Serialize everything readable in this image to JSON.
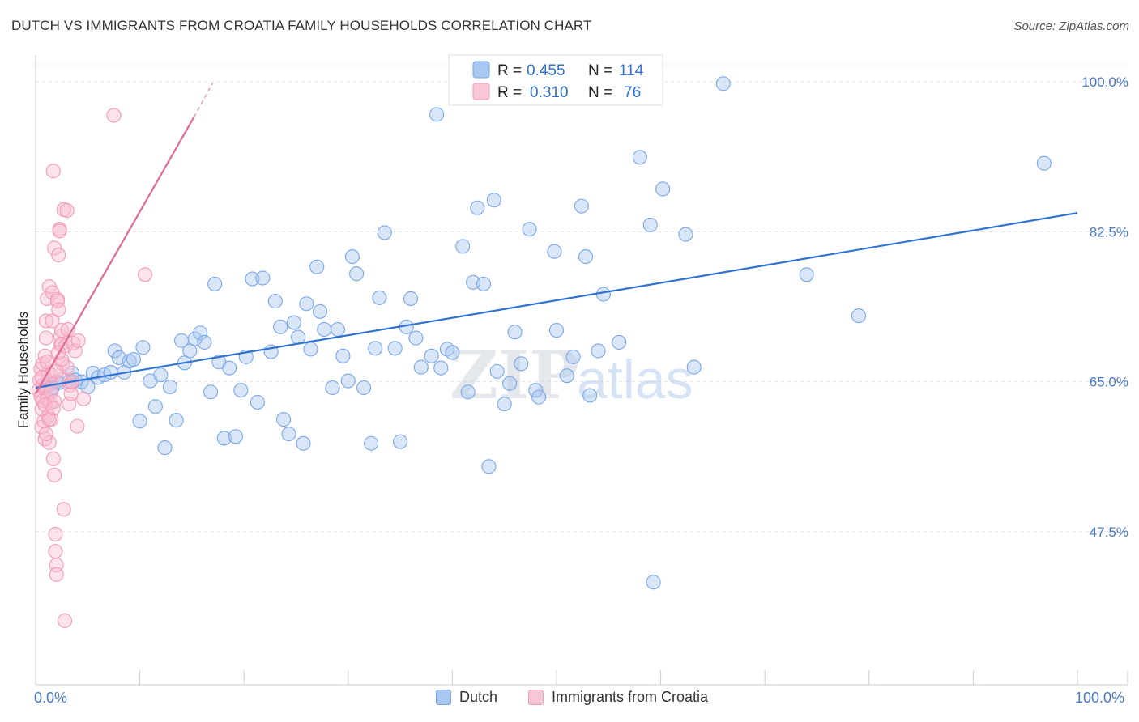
{
  "header": {
    "title": "DUTCH VS IMMIGRANTS FROM CROATIA FAMILY HOUSEHOLDS CORRELATION CHART",
    "source": "Source: ZipAtlas.com"
  },
  "watermark": {
    "part1": "ZIP",
    "part2": "atlas"
  },
  "chart_data": {
    "type": "scatter",
    "title": "DUTCH VS IMMIGRANTS FROM CROATIA FAMILY HOUSEHOLDS CORRELATION CHART",
    "xlabel": "",
    "ylabel": "Family Households",
    "xlim": [
      0,
      100
    ],
    "ylim": [
      30,
      102
    ],
    "x_tick_labels": [
      "0.0%",
      "100.0%"
    ],
    "y_ticks": [
      47.5,
      65.0,
      82.5,
      100.0
    ],
    "y_tick_labels": [
      "47.5%",
      "65.0%",
      "82.5%",
      "100.0%"
    ],
    "grid": true,
    "legend": {
      "placement": "top-center",
      "rows": [
        {
          "r_label": "R = ",
          "r_value": "0.455",
          "n_label": "N = ",
          "n_value": "114"
        },
        {
          "r_label": "R = ",
          "r_value": "0.310",
          "n_label": "N = ",
          "n_value": "76"
        }
      ]
    },
    "series": [
      {
        "name": "Dutch",
        "color": "#7aa6e8",
        "line_color": "#2f72d0",
        "trend": {
          "x": [
            0,
            100
          ],
          "y": [
            64.3,
            84.7
          ]
        },
        "points": [
          [
            0.9,
            64.4
          ],
          [
            1.0,
            64.6
          ],
          [
            1.1,
            64.5
          ],
          [
            1.2,
            64.7
          ],
          [
            1.5,
            64.1
          ],
          [
            1.6,
            64.3
          ],
          [
            2.0,
            65.0
          ],
          [
            2.2,
            64.9
          ],
          [
            3.2,
            65.0
          ],
          [
            3.5,
            66.0
          ],
          [
            3.8,
            65.2
          ],
          [
            4.4,
            65.0
          ],
          [
            5.0,
            64.4
          ],
          [
            5.5,
            66.0
          ],
          [
            6.0,
            65.5
          ],
          [
            6.6,
            65.8
          ],
          [
            7.2,
            66.1
          ],
          [
            7.6,
            68.6
          ],
          [
            8.0,
            67.8
          ],
          [
            8.5,
            66.1
          ],
          [
            9.0,
            67.4
          ],
          [
            9.4,
            67.6
          ],
          [
            10.0,
            60.4
          ],
          [
            10.3,
            69.0
          ],
          [
            11.0,
            65.1
          ],
          [
            11.5,
            62.1
          ],
          [
            12.0,
            65.8
          ],
          [
            12.4,
            57.3
          ],
          [
            12.9,
            64.4
          ],
          [
            13.5,
            60.5
          ],
          [
            14.0,
            69.8
          ],
          [
            14.3,
            67.2
          ],
          [
            14.8,
            68.6
          ],
          [
            15.3,
            70.0
          ],
          [
            15.8,
            70.7
          ],
          [
            16.2,
            69.6
          ],
          [
            16.8,
            63.8
          ],
          [
            17.2,
            76.4
          ],
          [
            17.6,
            67.3
          ],
          [
            18.1,
            58.4
          ],
          [
            18.6,
            66.6
          ],
          [
            19.2,
            58.6
          ],
          [
            19.7,
            64.0
          ],
          [
            20.2,
            67.9
          ],
          [
            20.8,
            77.0
          ],
          [
            21.3,
            62.6
          ],
          [
            21.8,
            77.1
          ],
          [
            22.6,
            68.5
          ],
          [
            23.0,
            74.4
          ],
          [
            23.5,
            71.4
          ],
          [
            23.8,
            60.6
          ],
          [
            24.3,
            58.9
          ],
          [
            24.8,
            71.9
          ],
          [
            25.2,
            70.2
          ],
          [
            25.7,
            57.8
          ],
          [
            26.0,
            74.1
          ],
          [
            26.4,
            68.8
          ],
          [
            27.0,
            78.4
          ],
          [
            27.3,
            73.2
          ],
          [
            27.7,
            71.1
          ],
          [
            28.5,
            64.3
          ],
          [
            29.0,
            71.1
          ],
          [
            29.5,
            68.0
          ],
          [
            30.0,
            65.1
          ],
          [
            30.4,
            79.6
          ],
          [
            30.8,
            77.6
          ],
          [
            31.5,
            64.3
          ],
          [
            32.2,
            57.8
          ],
          [
            32.6,
            68.9
          ],
          [
            33.0,
            74.8
          ],
          [
            33.5,
            82.4
          ],
          [
            34.5,
            68.9
          ],
          [
            35.0,
            58.0
          ],
          [
            35.6,
            71.4
          ],
          [
            36.0,
            74.7
          ],
          [
            36.5,
            70.1
          ],
          [
            37.0,
            66.7
          ],
          [
            38.0,
            68.0
          ],
          [
            38.5,
            96.2
          ],
          [
            38.9,
            66.6
          ],
          [
            39.5,
            68.8
          ],
          [
            40.0,
            68.4
          ],
          [
            41.0,
            80.8
          ],
          [
            41.5,
            63.8
          ],
          [
            42.0,
            76.6
          ],
          [
            42.4,
            85.3
          ],
          [
            43.0,
            76.4
          ],
          [
            43.5,
            55.1
          ],
          [
            44.0,
            86.2
          ],
          [
            44.3,
            66.2
          ],
          [
            45.0,
            62.4
          ],
          [
            45.5,
            64.8
          ],
          [
            46.0,
            70.8
          ],
          [
            46.6,
            67.1
          ],
          [
            47.4,
            82.8
          ],
          [
            48.0,
            64.0
          ],
          [
            48.3,
            63.2
          ],
          [
            49.8,
            80.2
          ],
          [
            50.0,
            71.0
          ],
          [
            51.0,
            65.7
          ],
          [
            51.6,
            67.9
          ],
          [
            52.4,
            85.5
          ],
          [
            52.8,
            79.6
          ],
          [
            53.2,
            63.4
          ],
          [
            54.0,
            68.6
          ],
          [
            54.5,
            75.2
          ],
          [
            56.0,
            69.6
          ],
          [
            58.0,
            91.2
          ],
          [
            59.0,
            83.3
          ],
          [
            59.3,
            41.6
          ],
          [
            60.2,
            87.5
          ],
          [
            62.4,
            82.2
          ],
          [
            63.2,
            66.7
          ],
          [
            66.0,
            99.8
          ],
          [
            74.0,
            77.5
          ],
          [
            79.0,
            72.7
          ],
          [
            96.8,
            90.5
          ]
        ]
      },
      {
        "name": "Immigrants from Croatia",
        "color": "#f49ab6",
        "line_color": "#e06a96",
        "trend": {
          "x": [
            0,
            15.2
          ],
          "y": [
            63.6,
            95.9
          ]
        },
        "trend_dashed": {
          "x": [
            15.2,
            17.0
          ],
          "y": [
            95.9,
            99.9
          ]
        },
        "points": [
          [
            0.3,
            64.0
          ],
          [
            0.4,
            65.2
          ],
          [
            0.5,
            63.3
          ],
          [
            0.5,
            66.5
          ],
          [
            0.6,
            61.8
          ],
          [
            0.6,
            59.7
          ],
          [
            0.7,
            62.8
          ],
          [
            0.7,
            67.1
          ],
          [
            0.8,
            60.4
          ],
          [
            0.8,
            64.3
          ],
          [
            0.9,
            58.3
          ],
          [
            0.9,
            68.0
          ],
          [
            1.0,
            70.1
          ],
          [
            1.0,
            72.1
          ],
          [
            1.1,
            63.0
          ],
          [
            1.1,
            74.7
          ],
          [
            1.2,
            61.0
          ],
          [
            1.2,
            66.0
          ],
          [
            1.3,
            76.1
          ],
          [
            1.3,
            57.9
          ],
          [
            1.4,
            64.7
          ],
          [
            1.4,
            62.5
          ],
          [
            1.5,
            65.8
          ],
          [
            1.5,
            60.6
          ],
          [
            1.6,
            72.1
          ],
          [
            1.6,
            75.4
          ],
          [
            1.7,
            89.6
          ],
          [
            1.7,
            56.0
          ],
          [
            1.8,
            54.1
          ],
          [
            1.8,
            80.6
          ],
          [
            1.9,
            47.2
          ],
          [
            1.9,
            45.2
          ],
          [
            2.0,
            43.6
          ],
          [
            2.0,
            42.5
          ],
          [
            2.1,
            74.6
          ],
          [
            2.1,
            74.4
          ],
          [
            2.2,
            73.4
          ],
          [
            2.2,
            79.8
          ],
          [
            2.3,
            82.8
          ],
          [
            2.3,
            82.6
          ],
          [
            2.4,
            70.3
          ],
          [
            2.4,
            69.3
          ],
          [
            2.5,
            71.0
          ],
          [
            2.5,
            69.4
          ],
          [
            2.6,
            65.3
          ],
          [
            2.6,
            67.1
          ],
          [
            2.7,
            85.1
          ],
          [
            2.7,
            50.1
          ],
          [
            2.8,
            37.1
          ],
          [
            2.9,
            69.2
          ],
          [
            3.0,
            66.7
          ],
          [
            3.0,
            85.0
          ],
          [
            3.1,
            71.1
          ],
          [
            3.2,
            62.4
          ],
          [
            3.3,
            64.6
          ],
          [
            3.4,
            63.6
          ],
          [
            3.5,
            65.0
          ],
          [
            3.6,
            69.5
          ],
          [
            3.8,
            68.6
          ],
          [
            4.0,
            59.8
          ],
          [
            4.1,
            69.8
          ],
          [
            1.3,
            60.6
          ],
          [
            1.1,
            67.3
          ],
          [
            0.9,
            62.3
          ],
          [
            0.7,
            64.6
          ],
          [
            1.5,
            63.8
          ],
          [
            2.0,
            66.2
          ],
          [
            1.8,
            62.7
          ],
          [
            2.5,
            67.6
          ],
          [
            0.6,
            65.5
          ],
          [
            4.6,
            63.0
          ],
          [
            1.0,
            58.9
          ],
          [
            1.7,
            61.9
          ],
          [
            2.2,
            68.4
          ],
          [
            7.5,
            96.1
          ],
          [
            10.5,
            77.5
          ]
        ]
      }
    ]
  },
  "bottom_legend": [
    {
      "label": "Dutch",
      "color": "#a9c7f0",
      "border": "#7aa6e8"
    },
    {
      "label": "Immigrants from Croatia",
      "color": "#f9c6d6",
      "border": "#f49ab6"
    }
  ]
}
